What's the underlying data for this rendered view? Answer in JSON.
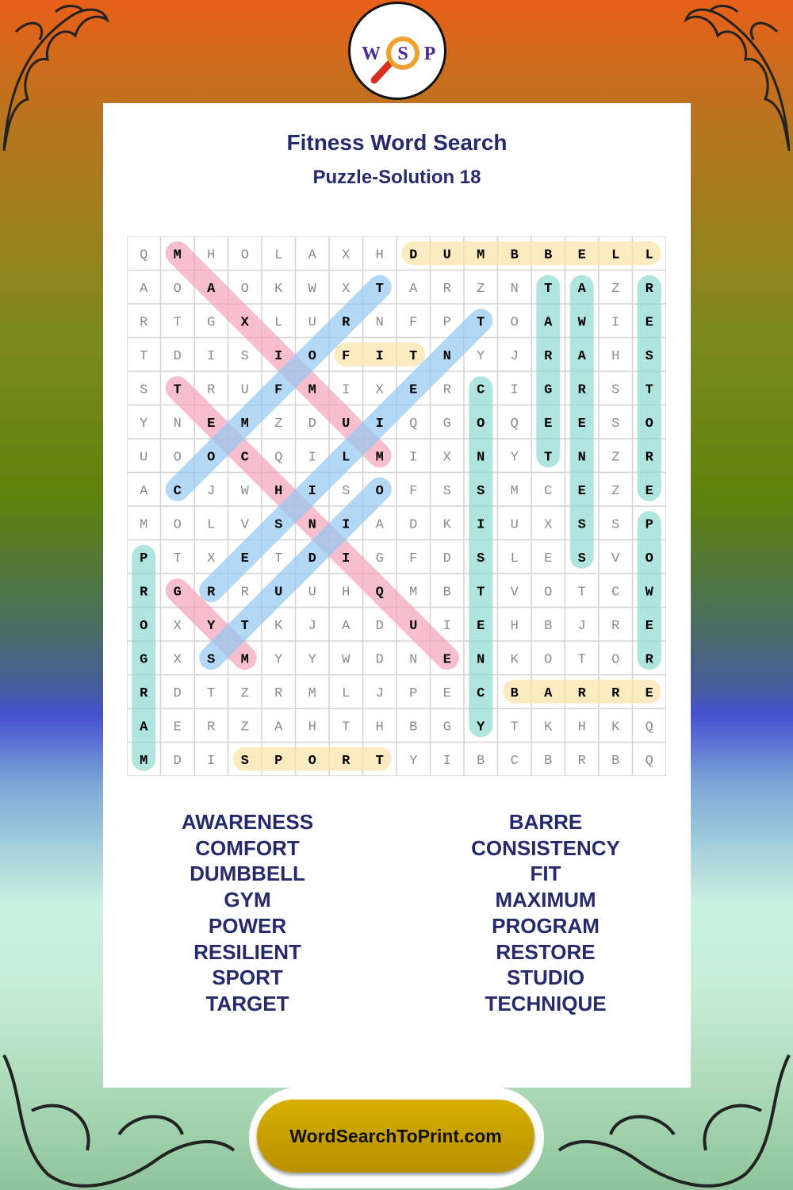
{
  "logo": {
    "letters": [
      "W",
      "S",
      "P"
    ]
  },
  "header": {
    "title": "Fitness Word Search",
    "subtitle": "Puzzle-Solution 18"
  },
  "grid": {
    "rows": [
      "QMHOLAXHDUMBBELL",
      "AOAOKWXTARZNTAZR",
      "RTGXLURNFPTOAWIE",
      "TDISIOFITNYJRAHS",
      "STRUFMIXERCIGRST",
      "YNEMZDUIQGOQEESO",
      "UOOCQILMIXNYTNZR",
      "ACJWHISOFSSMCEZE",
      "MOLVSNIADKIUXSSP",
      "PTXETDIGFDSLESVO",
      "RGRRUUHQMBTVOTCW",
      "OXYTKJADUIEHBJRE",
      "GXSMYYWDNENKOTOR",
      "RDTZRMLJPECBARRE",
      "AERZAHTHBGYTKHKQ",
      "MDISPORTYIBCBRBQ"
    ],
    "solutions": [
      {
        "word": "DUMBBELL",
        "start": [
          0,
          8
        ],
        "end": [
          0,
          15
        ],
        "color": "#fbe3a6"
      },
      {
        "word": "FIT",
        "start": [
          3,
          6
        ],
        "end": [
          3,
          8
        ],
        "color": "#fbe3a6"
      },
      {
        "word": "BARRE",
        "start": [
          13,
          11
        ],
        "end": [
          13,
          15
        ],
        "color": "#fbe3a6"
      },
      {
        "word": "SPORT",
        "start": [
          15,
          3
        ],
        "end": [
          15,
          7
        ],
        "color": "#fbe3a6"
      },
      {
        "word": "TARGET",
        "start": [
          1,
          12
        ],
        "end": [
          6,
          12
        ],
        "color": "#8ed8d2"
      },
      {
        "word": "AWARENESS",
        "start": [
          1,
          13
        ],
        "end": [
          9,
          13
        ],
        "color": "#8ed8d2"
      },
      {
        "word": "RESTORE",
        "start": [
          1,
          15
        ],
        "end": [
          7,
          15
        ],
        "color": "#8ed8d2"
      },
      {
        "word": "CONSISTENCY",
        "start": [
          4,
          10
        ],
        "end": [
          14,
          10
        ],
        "color": "#8ed8d2"
      },
      {
        "word": "POWER",
        "start": [
          8,
          15
        ],
        "end": [
          12,
          15
        ],
        "color": "#8ed8d2"
      },
      {
        "word": "PROGRAM",
        "start": [
          9,
          0
        ],
        "end": [
          15,
          0
        ],
        "color": "#8ed8d2"
      },
      {
        "word": "MAXIMUM",
        "start": [
          0,
          1
        ],
        "end": [
          6,
          7
        ],
        "color": "#f4a3b8"
      },
      {
        "word": "TECHNIQUE",
        "start": [
          4,
          1
        ],
        "end": [
          12,
          9
        ],
        "color": "#f4a3b8"
      },
      {
        "word": "GYM",
        "start": [
          10,
          1
        ],
        "end": [
          12,
          3
        ],
        "color": "#f4a3b8"
      },
      {
        "word": "COMFORT",
        "start": [
          7,
          1
        ],
        "end": [
          1,
          7
        ],
        "color": "#93c8f2"
      },
      {
        "word": "STUDIO",
        "start": [
          12,
          2
        ],
        "end": [
          7,
          7
        ],
        "color": "#93c8f2"
      },
      {
        "word": "RESILIENT",
        "start": [
          10,
          2
        ],
        "end": [
          2,
          10
        ],
        "color": "#93c8f2"
      }
    ]
  },
  "word_list": {
    "left": [
      "AWARENESS",
      "COMFORT",
      "DUMBBELL",
      "GYM",
      "POWER",
      "RESILIENT",
      "SPORT",
      "TARGET"
    ],
    "right": [
      "BARRE",
      "CONSISTENCY",
      "FIT",
      "MAXIMUM",
      "PROGRAM",
      "RESTORE",
      "STUDIO",
      "TECHNIQUE"
    ]
  },
  "footer": {
    "site": "WordSearchToPrint.com"
  },
  "colors": {
    "title": "#242a6b",
    "footer_gold": "#c9a200"
  }
}
